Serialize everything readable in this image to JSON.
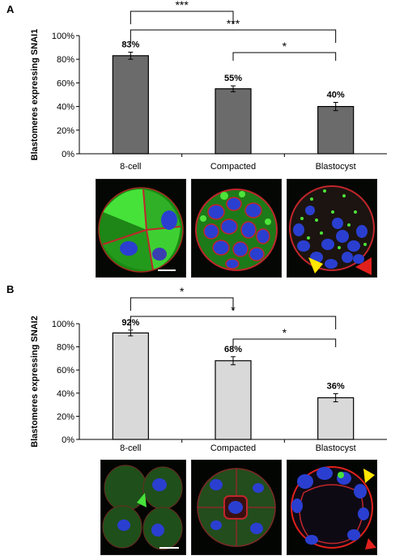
{
  "chart_data": [
    {
      "panel": "A",
      "type": "bar",
      "categories": [
        "8-cell",
        "Compacted",
        "Blastocyst"
      ],
      "values": [
        83,
        55,
        40
      ],
      "errors": [
        3,
        2.5,
        3.5
      ],
      "data_labels": [
        "83%",
        "55%",
        "40%"
      ],
      "ylabel": "Blastomeres expressing SNAI1",
      "ylim": [
        0,
        100
      ],
      "yticks": [
        "0%",
        "20%",
        "40%",
        "60%",
        "80%",
        "100%"
      ],
      "bar_color": "#6b6b6b",
      "significance": [
        {
          "from": 0,
          "to": 1,
          "label": "***"
        },
        {
          "from": 0,
          "to": 2,
          "label": "***"
        },
        {
          "from": 1,
          "to": 2,
          "label": "*"
        }
      ]
    },
    {
      "panel": "B",
      "type": "bar",
      "categories": [
        "8-cell",
        "Compacted",
        "Blastocyst"
      ],
      "values": [
        92,
        68,
        36
      ],
      "errors": [
        2.5,
        3.5,
        3.5
      ],
      "data_labels": [
        "92%",
        "68%",
        "36%"
      ],
      "ylabel": "Blastomeres expressing SNAI2",
      "ylim": [
        0,
        100
      ],
      "yticks": [
        "0%",
        "20%",
        "40%",
        "60%",
        "80%",
        "100%"
      ],
      "bar_color": "#d9d9d9",
      "significance": [
        {
          "from": 0,
          "to": 1,
          "label": "*"
        },
        {
          "from": 0,
          "to": 2,
          "label": "*"
        },
        {
          "from": 1,
          "to": 2,
          "label": "*"
        }
      ]
    }
  ],
  "panels": {
    "a": {
      "letter": "A"
    },
    "b": {
      "letter": "B"
    }
  },
  "colors": {
    "membrane": "#c0262b",
    "nucleus": "#2a3fd0",
    "signal": "#39d62e",
    "arrow_yellow": "#ffe600",
    "arrow_red": "#e0201c"
  }
}
